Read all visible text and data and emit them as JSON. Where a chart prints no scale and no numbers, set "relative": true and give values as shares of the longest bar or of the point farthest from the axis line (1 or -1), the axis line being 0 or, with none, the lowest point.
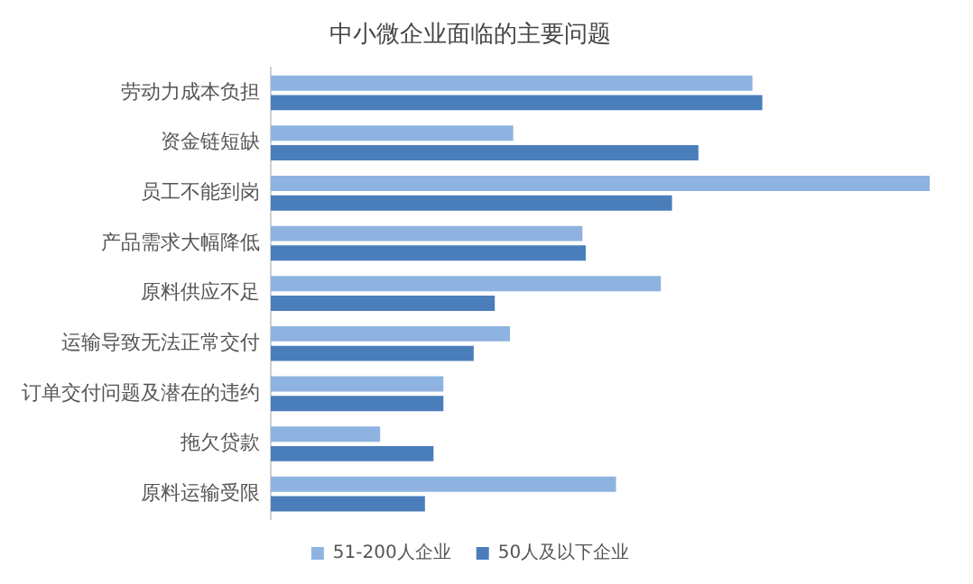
{
  "chart_data": {
    "type": "bar",
    "orientation": "horizontal",
    "relative": true,
    "title": "中小微企业面临的主要问题",
    "categories": [
      "劳动力成本负担",
      "资金链短缺",
      "员工不能到岗",
      "产品需求大幅降低",
      "原料供应不足",
      "运输导致无法正常交付",
      "订单交付问题及潜在的违约",
      "拖欠贷款",
      "原料运输受限"
    ],
    "series": [
      {
        "name": "51-200人企业",
        "color": "#8eb3e0",
        "values": [
          0.731,
          0.368,
          1,
          0.473,
          0.592,
          0.363,
          0.262,
          0.166,
          0.524
        ]
      },
      {
        "name": "50人及以下企业",
        "color": "#4a7ebb",
        "values": [
          0.746,
          0.649,
          0.609,
          0.478,
          0.34,
          0.308,
          0.262,
          0.247,
          0.234
        ]
      }
    ],
    "legend": "bottom"
  }
}
